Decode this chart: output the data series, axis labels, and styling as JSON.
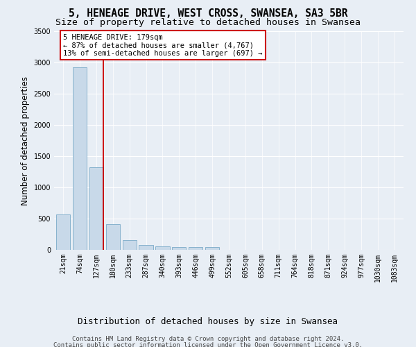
{
  "title": "5, HENEAGE DRIVE, WEST CROSS, SWANSEA, SA3 5BR",
  "subtitle": "Size of property relative to detached houses in Swansea",
  "xlabel": "Distribution of detached houses by size in Swansea",
  "ylabel": "Number of detached properties",
  "categories": [
    "21sqm",
    "74sqm",
    "127sqm",
    "180sqm",
    "233sqm",
    "287sqm",
    "340sqm",
    "393sqm",
    "446sqm",
    "499sqm",
    "552sqm",
    "605sqm",
    "658sqm",
    "711sqm",
    "764sqm",
    "818sqm",
    "871sqm",
    "924sqm",
    "977sqm",
    "1030sqm",
    "1083sqm"
  ],
  "values": [
    570,
    2920,
    1320,
    410,
    155,
    80,
    55,
    50,
    45,
    40,
    0,
    0,
    0,
    0,
    0,
    0,
    0,
    0,
    0,
    0,
    0
  ],
  "bar_color": "#c8d9e9",
  "bar_edge_color": "#7aaac8",
  "vline_color": "#cc0000",
  "annotation_line1": "5 HENEAGE DRIVE: 179sqm",
  "annotation_line2": "← 87% of detached houses are smaller (4,767)",
  "annotation_line3": "13% of semi-detached houses are larger (697) →",
  "annotation_box_color": "#ffffff",
  "annotation_box_edge": "#cc0000",
  "ylim": [
    0,
    3500
  ],
  "yticks": [
    0,
    500,
    1000,
    1500,
    2000,
    2500,
    3000,
    3500
  ],
  "background_color": "#e8eef5",
  "grid_color": "#ffffff",
  "footer_line1": "Contains HM Land Registry data © Crown copyright and database right 2024.",
  "footer_line2": "Contains public sector information licensed under the Open Government Licence v3.0.",
  "title_fontsize": 10.5,
  "subtitle_fontsize": 9.5,
  "xlabel_fontsize": 9,
  "ylabel_fontsize": 8.5,
  "tick_fontsize": 7,
  "annotation_fontsize": 7.5,
  "footer_fontsize": 6.5
}
